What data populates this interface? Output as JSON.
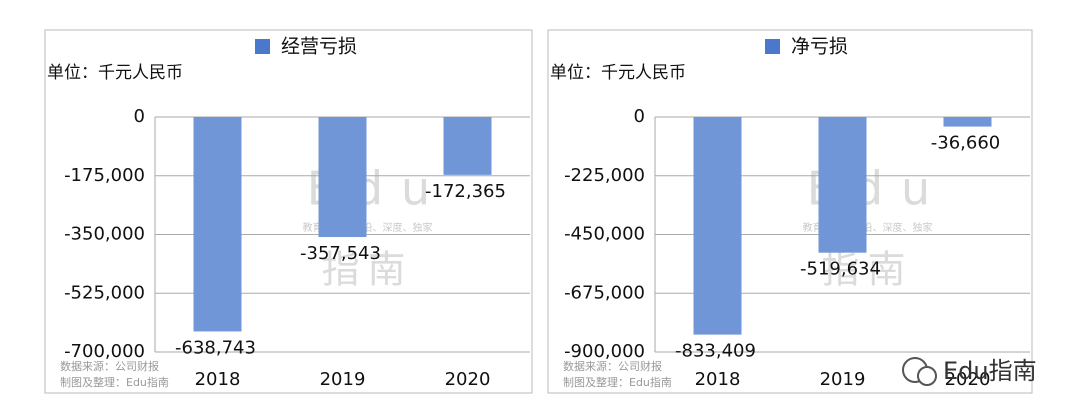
{
  "chart_data": [
    {
      "type": "bar",
      "unit": "单位：千元人民币",
      "categories": [
        "2018",
        "2019",
        "2020"
      ],
      "series": [
        {
          "name": "经营亏损",
          "color": "#7096d8",
          "legend_color": "#4a78cc",
          "values": [
            -638743,
            -357543,
            -172365
          ],
          "value_labels": [
            "-638,743",
            "-357,543",
            "-172,365"
          ]
        }
      ],
      "ylim": [
        -700000,
        0
      ],
      "yticks": [
        0,
        {
          "value": -175000,
          "label": "-175,000"
        },
        {
          "value": -350000,
          "label": "-350,000"
        },
        {
          "value": -525000,
          "label": "-525,000"
        },
        {
          "value": -700000,
          "label": "-700,000"
        }
      ],
      "grid": true,
      "source": "数据来源：公司财报",
      "credit": "制图及整理：Edu指南"
    },
    {
      "type": "bar",
      "unit": "单位：千元人民币",
      "categories": [
        "2018",
        "2019",
        "2020"
      ],
      "series": [
        {
          "name": "净亏损",
          "color": "#7096d8",
          "legend_color": "#4a78cc",
          "values": [
            -833409,
            -519634,
            -36660
          ],
          "value_labels": [
            "-833,409",
            "-519,634",
            "-36,660"
          ]
        }
      ],
      "ylim": [
        -900000,
        0
      ],
      "yticks": [
        0,
        {
          "value": -225000,
          "label": "-225,000"
        },
        {
          "value": -450000,
          "label": "-450,000"
        },
        {
          "value": -675000,
          "label": "-675,000"
        },
        {
          "value": -900000,
          "label": "-900,000"
        }
      ],
      "grid": true,
      "source": "数据来源：公司财报",
      "credit": "制图及整理：Edu指南"
    }
  ],
  "watermark": {
    "main": "Edu",
    "tagline": "教育行业、前沿、深度、独家",
    "cn": "指南"
  },
  "brand": "Edu指南"
}
